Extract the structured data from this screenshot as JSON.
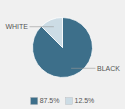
{
  "chart_data": {
    "type": "pie",
    "categories": [
      "BLACK",
      "WHITE"
    ],
    "values": [
      87.5,
      12.5
    ],
    "value_labels": [
      "87.5%",
      "12.5%"
    ],
    "colors": [
      "#3d6f8a",
      "#ccdce5"
    ],
    "legend": "bottom"
  }
}
